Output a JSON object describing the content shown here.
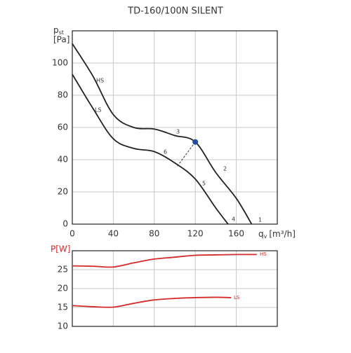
{
  "chart_data": [
    {
      "type": "line",
      "title": "TD-160/100N SILENT",
      "y_label": {
        "symbol": "p",
        "subscript": "st",
        "unit": "[Pa]"
      },
      "x_label": {
        "symbol": "q",
        "subscript": "v",
        "unit": "[m³/h]"
      },
      "xlim": [
        0,
        200
      ],
      "xticks": [
        0,
        40,
        80,
        120,
        160
      ],
      "show_xtick_labels": true,
      "ylim": [
        0,
        120
      ],
      "yticks": [
        0,
        20,
        40,
        60,
        80,
        100
      ],
      "grid": true,
      "series": [
        {
          "name": "HS",
          "color": "#222222",
          "x": [
            0,
            20,
            40,
            60,
            80,
            100,
            120,
            140,
            160,
            175
          ],
          "values": [
            112,
            92,
            68,
            60,
            59,
            55,
            51,
            32,
            16,
            0
          ]
        },
        {
          "name": "LS",
          "color": "#222222",
          "x": [
            0,
            20,
            40,
            60,
            80,
            100,
            120,
            140,
            152
          ],
          "values": [
            93,
            72,
            53,
            47,
            45,
            38,
            28,
            10,
            0
          ]
        }
      ],
      "marker": {
        "x": 120,
        "y": 51,
        "color": "#1f4fa0"
      },
      "annotations": [
        "1",
        "2",
        "3",
        "4",
        "5",
        "6"
      ]
    },
    {
      "type": "line",
      "y_label": "P[W]",
      "label_color": "#d42a2a",
      "xlim": [
        0,
        200
      ],
      "xticks": [
        0,
        40,
        80,
        120,
        160
      ],
      "show_xtick_labels": false,
      "ylim": [
        10,
        30
      ],
      "yticks": [
        10,
        15,
        20,
        25
      ],
      "grid": true,
      "series": [
        {
          "name": "HS",
          "color": "#d42a2a",
          "x": [
            0,
            20,
            40,
            60,
            80,
            100,
            120,
            140,
            160,
            180
          ],
          "values": [
            26,
            25.9,
            25.7,
            26.8,
            27.8,
            28.3,
            28.8,
            28.9,
            29,
            29
          ]
        },
        {
          "name": "LS",
          "color": "#d42a2a",
          "x": [
            0,
            20,
            40,
            60,
            80,
            100,
            120,
            140,
            155
          ],
          "values": [
            15.5,
            15.2,
            15.1,
            16.1,
            17,
            17.4,
            17.6,
            17.7,
            17.6
          ]
        }
      ]
    }
  ]
}
